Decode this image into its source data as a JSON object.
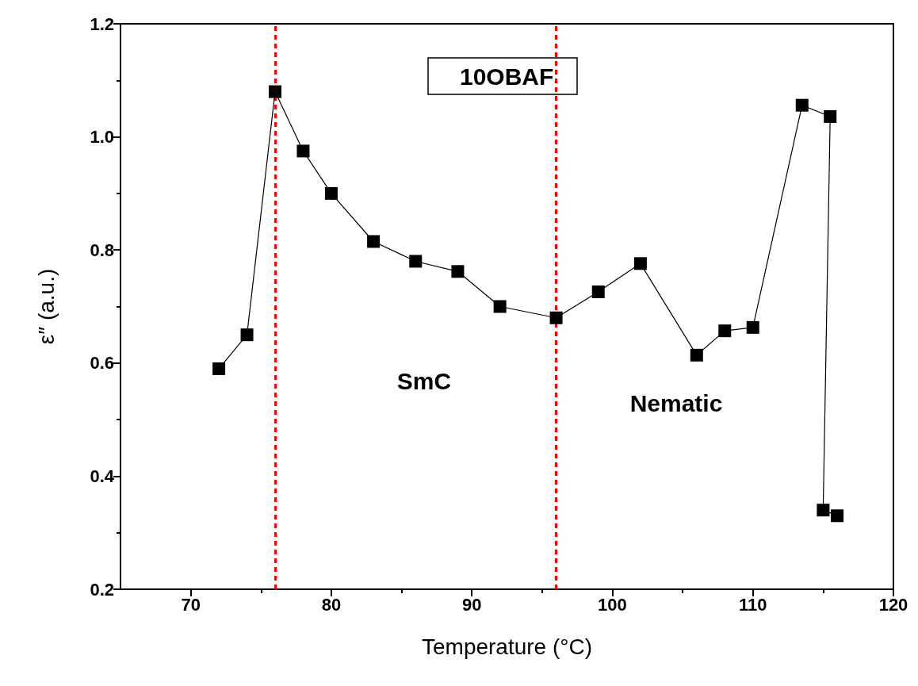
{
  "chart_data": {
    "type": "line",
    "title": "10OBAF",
    "xlabel": "Temperature (°C)",
    "ylabel": "ε″ (a.u.)",
    "series": [
      {
        "color": "#000000",
        "x": [
          72,
          74,
          76,
          78,
          80,
          83,
          86,
          89,
          92,
          96,
          99,
          102,
          106,
          108,
          110,
          113.5,
          115.5,
          115,
          116
        ],
        "values": [
          0.59,
          0.65,
          1.08,
          0.975,
          0.9,
          0.815,
          0.78,
          0.762,
          0.7,
          0.68,
          0.726,
          0.776,
          0.614,
          0.657,
          0.663,
          1.056,
          1.036,
          0.34,
          0.33
        ]
      }
    ],
    "xlim": [
      65,
      120
    ],
    "xticks": [
      70,
      80,
      90,
      100,
      110,
      120
    ],
    "ylim": [
      0.2,
      1.2
    ],
    "yticks": [
      0.2,
      0.4,
      0.6,
      0.8,
      {
        "value": 1,
        "label": "1.0"
      },
      1.2
    ],
    "marker": "square",
    "line_style": "solid",
    "grid": false,
    "ref_lines": [
      {
        "axis": "x",
        "value": 76,
        "color": "#ff0000",
        "line_style": "dashed"
      },
      {
        "axis": "x",
        "value": 96,
        "color": "#ff0000",
        "line_style": "dashed"
      }
    ],
    "annotations": [
      "SmC",
      "Nematic"
    ]
  }
}
